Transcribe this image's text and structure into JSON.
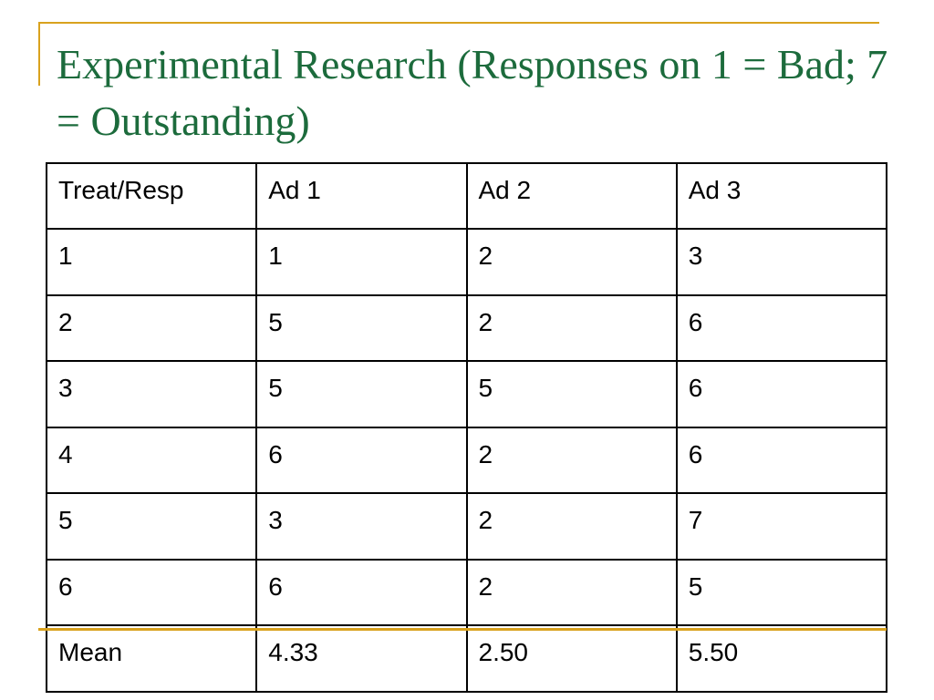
{
  "slide": {
    "title": "Experimental Research (Responses on 1 = Bad; 7 = Outstanding)",
    "accent_color": "#d9a21e",
    "title_color": "#1c6b3c"
  },
  "table": {
    "headers": [
      "Treat/Resp",
      "Ad 1",
      "Ad 2",
      "Ad 3"
    ],
    "rows": [
      [
        "1",
        "1",
        "2",
        "3"
      ],
      [
        "2",
        "5",
        "2",
        "6"
      ],
      [
        "3",
        "5",
        "5",
        "6"
      ],
      [
        "4",
        "6",
        "2",
        "6"
      ],
      [
        "5",
        "3",
        "2",
        "7"
      ],
      [
        "6",
        "6",
        "2",
        "5"
      ]
    ],
    "mean_row": [
      "Mean",
      "4.33",
      "2.50",
      "5.50"
    ]
  }
}
